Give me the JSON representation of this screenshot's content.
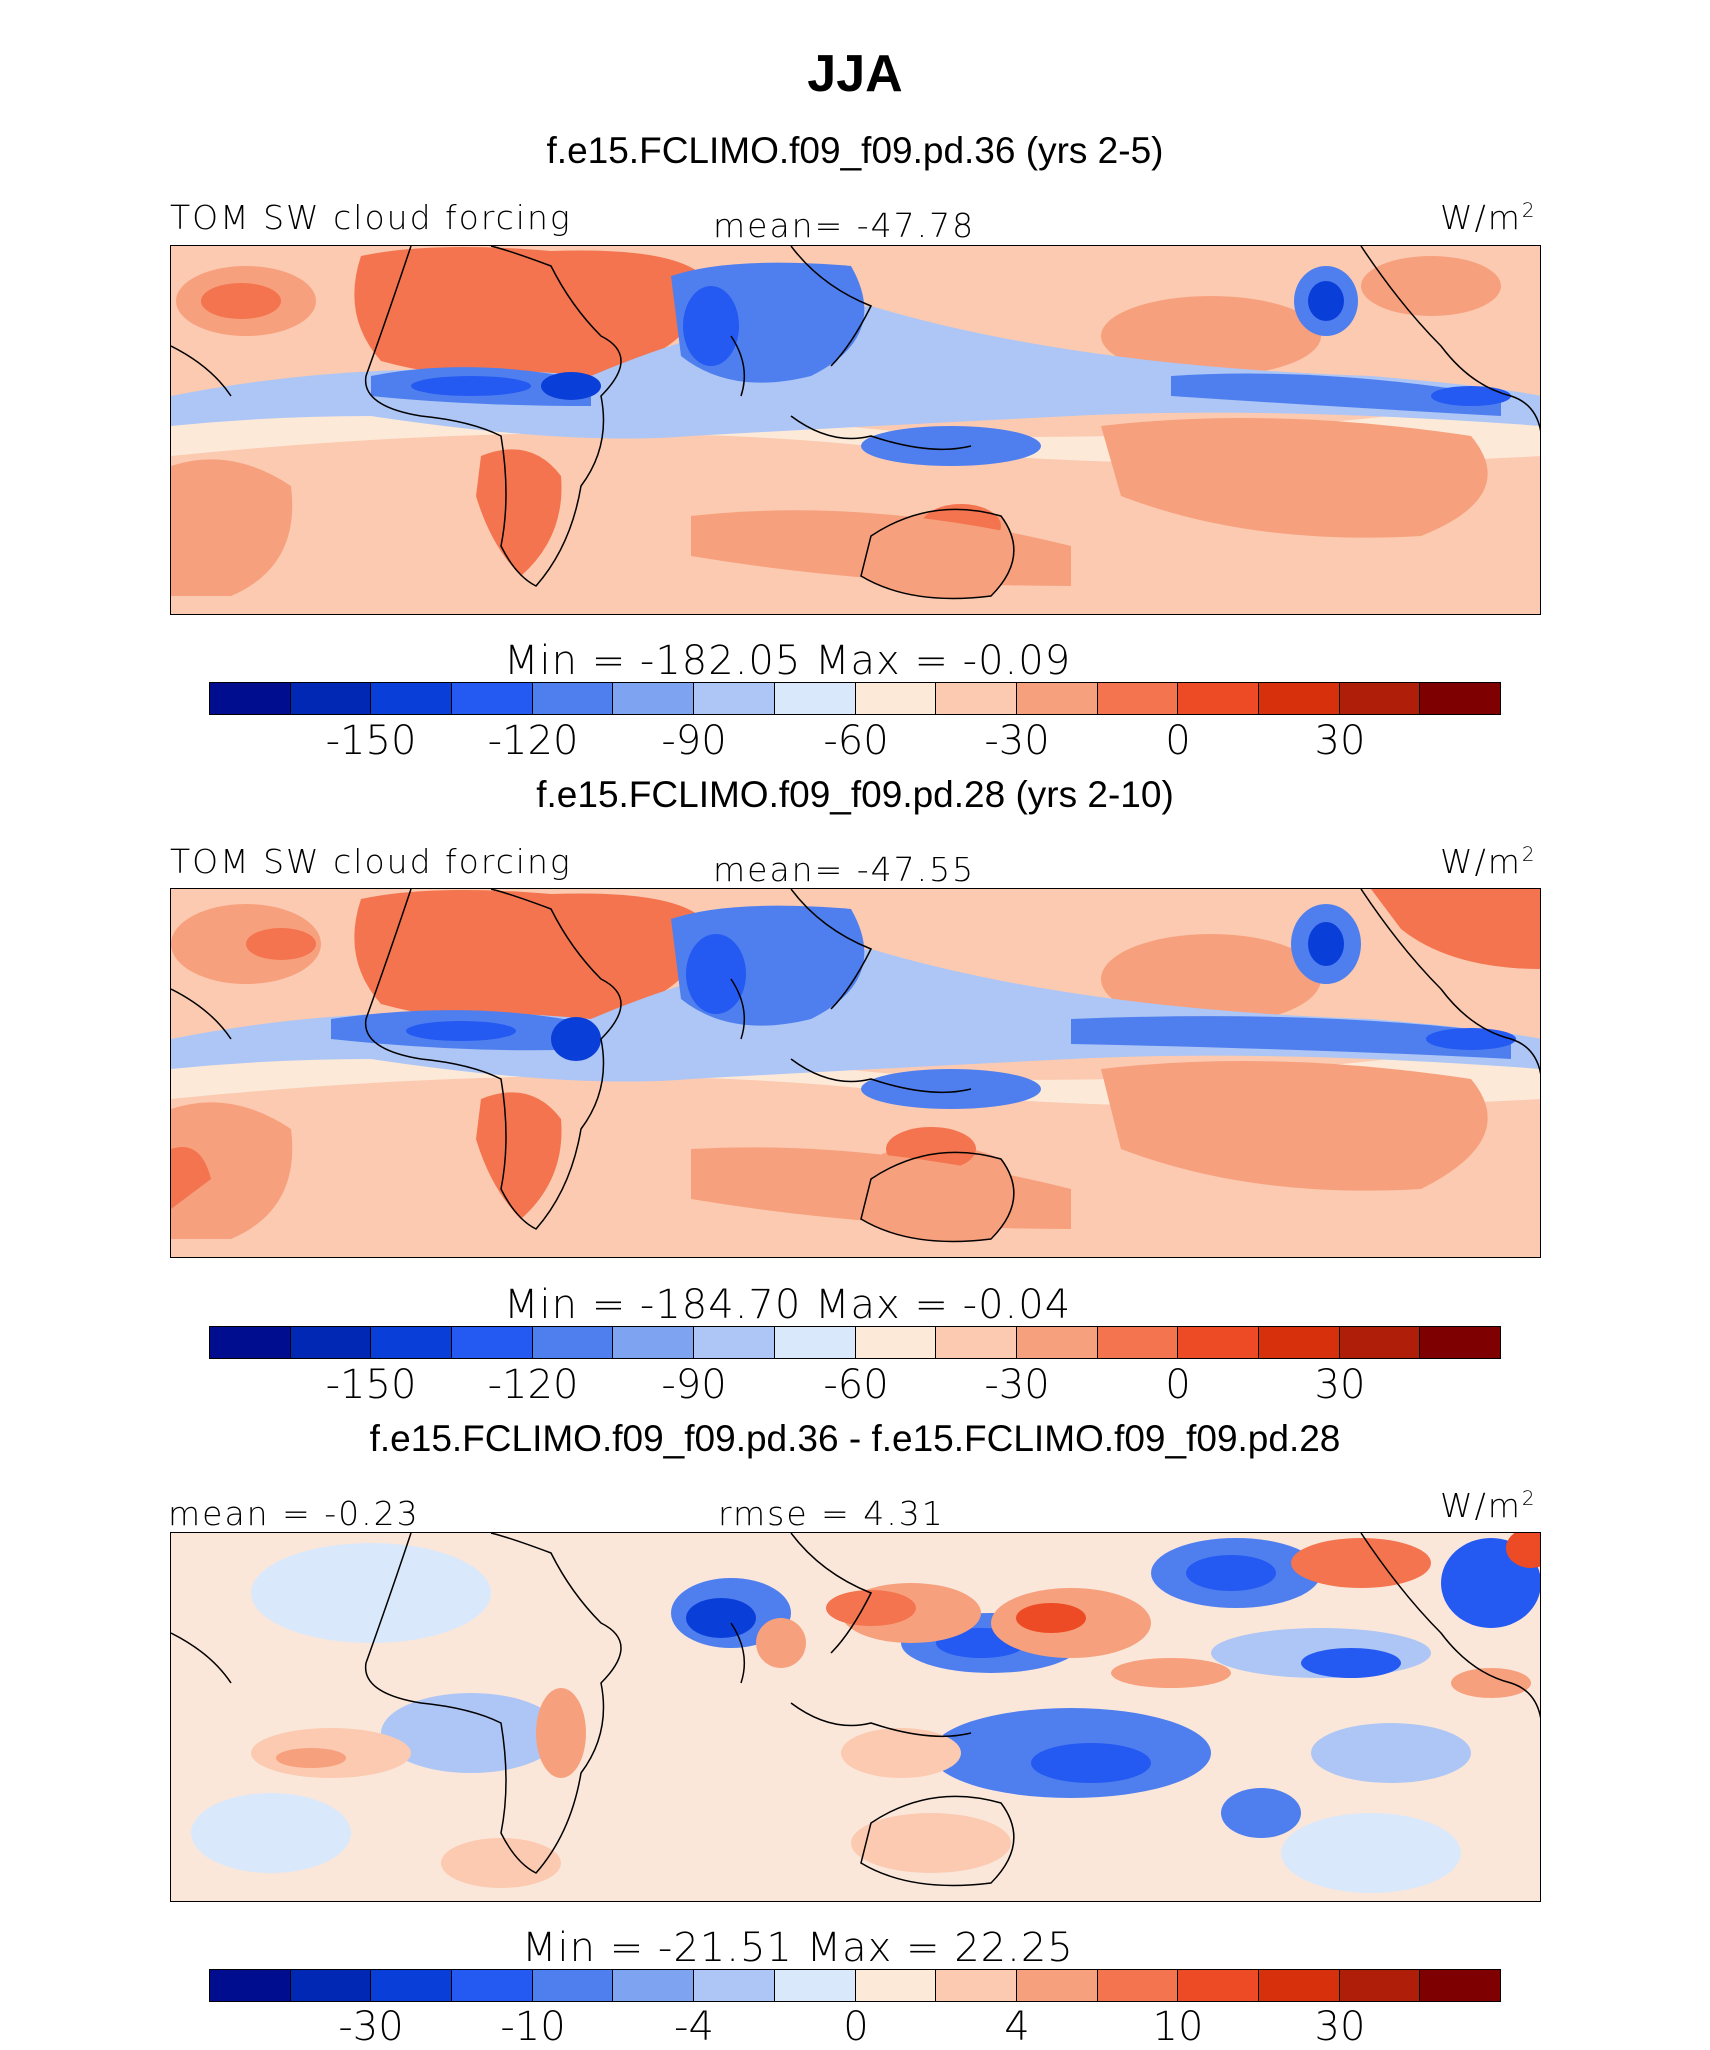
{
  "figure": {
    "title": "JJA"
  },
  "chart_data": [
    {
      "type": "heatmap",
      "panel": "top",
      "case_title": "f.e15.FCLIMO.f09_f09.pd.36 (yrs 2-5)",
      "variable_label": "TOM SW cloud forcing",
      "stat_text": "mean= -47.78",
      "units": "W/m",
      "units_sup": "2",
      "minmax_text": "Min = -182.05 Max = -0.09",
      "min": -182.05,
      "max": -0.09,
      "mean": -47.78,
      "colorbar_ticks": [
        "-150",
        "-120",
        "-90",
        "-60",
        "-30",
        "0",
        "30"
      ]
    },
    {
      "type": "heatmap",
      "panel": "middle",
      "case_title": "f.e15.FCLIMO.f09_f09.pd.28 (yrs 2-10)",
      "variable_label": "TOM SW cloud forcing",
      "stat_text": "mean= -47.55",
      "units": "W/m",
      "units_sup": "2",
      "minmax_text": "Min = -184.70 Max = -0.04",
      "min": -184.7,
      "max": -0.04,
      "mean": -47.55,
      "colorbar_ticks": [
        "-150",
        "-120",
        "-90",
        "-60",
        "-30",
        "0",
        "30"
      ]
    },
    {
      "type": "heatmap",
      "panel": "difference",
      "case_title": "f.e15.FCLIMO.f09_f09.pd.36 - f.e15.FCLIMO.f09_f09.pd.28",
      "stat_left_text": "mean = -0.23",
      "stat_center_text": "rmse = 4.31",
      "units": "W/m",
      "units_sup": "2",
      "minmax_text": "Min = -21.51 Max = 22.25",
      "min": -21.51,
      "max": 22.25,
      "mean": -0.23,
      "rmse": 4.31,
      "colorbar_ticks": [
        "-30",
        "-10",
        "-4",
        "0",
        "4",
        "10",
        "30"
      ]
    }
  ],
  "colorbar_colors": [
    "#000d8f",
    "#0028b5",
    "#0a3ed9",
    "#2459f2",
    "#4f7fee",
    "#7ea3f0",
    "#adc6f5",
    "#d9e8fb",
    "#fde9d8",
    "#fbcab0",
    "#f7a07d",
    "#f3744f",
    "#ec4b26",
    "#d7300c",
    "#ae1e08",
    "#7f0000"
  ],
  "palette": {
    "deep_blue": "#0a3ed9",
    "mid_blue": "#4f7fee",
    "light_blue": "#adc6f5",
    "pale_blue": "#d9e8fb",
    "pale_orange": "#fde9d8",
    "light_orange": "#fbcab0",
    "orange": "#f7a07d",
    "red_orange": "#f3744f",
    "red": "#ec4b26"
  }
}
